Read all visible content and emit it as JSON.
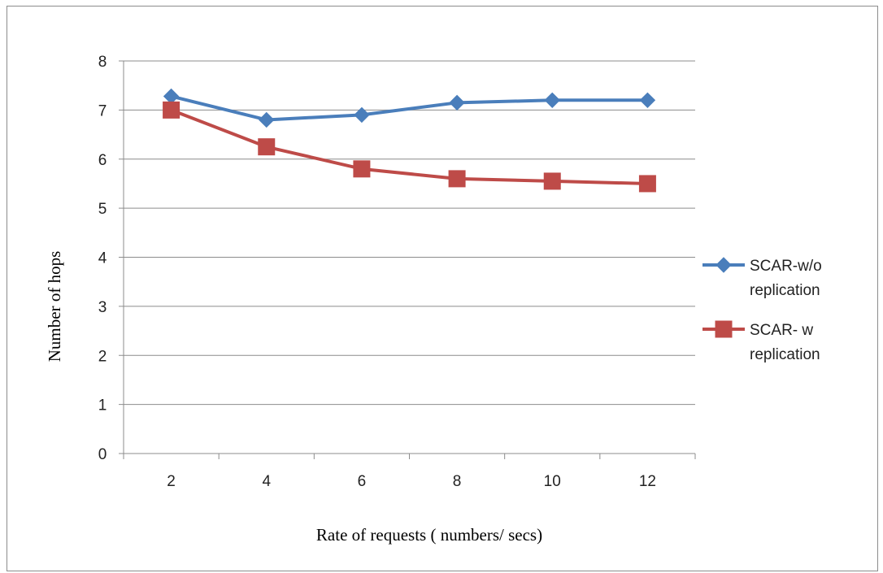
{
  "chart_data": {
    "type": "line",
    "title": "",
    "xlabel": "Rate of requests ( numbers/ secs)",
    "ylabel": "Number of  hops",
    "categories": [
      "2",
      "4",
      "6",
      "8",
      "10",
      "12"
    ],
    "ylim": [
      0,
      8
    ],
    "yticks": [
      "0",
      "1",
      "2",
      "3",
      "4",
      "5",
      "6",
      "7",
      "8"
    ],
    "grid": "horizontal",
    "legend_position": "right",
    "series": [
      {
        "name": "SCAR-w/o replication",
        "legend_lines": [
          "SCAR-w/o",
          "replication"
        ],
        "values": [
          7.28,
          6.8,
          6.9,
          7.15,
          7.2,
          7.2
        ],
        "color": "#4a7ebb",
        "marker": "diamond"
      },
      {
        "name": "SCAR- w replication",
        "legend_lines": [
          "SCAR- w",
          "replication"
        ],
        "values": [
          7.0,
          6.25,
          5.8,
          5.6,
          5.55,
          5.5
        ],
        "color": "#be4b48",
        "marker": "square"
      }
    ]
  }
}
